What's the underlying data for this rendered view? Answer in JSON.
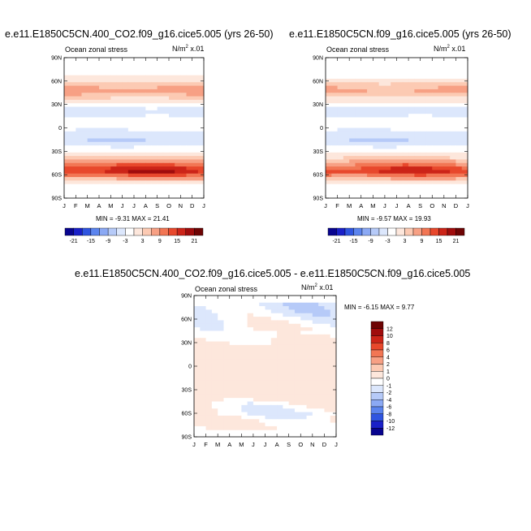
{
  "colors": {
    "scale": [
      "#08048f",
      "#1a20c8",
      "#2f55e0",
      "#5b84ee",
      "#8ba9f4",
      "#b6caf8",
      "#dce7fc",
      "#ffffff",
      "#fde7dc",
      "#fccab3",
      "#f7a084",
      "#f27654",
      "#e8482c",
      "#cc2418",
      "#a00c0c",
      "#6e0404"
    ]
  },
  "panels": [
    {
      "id": "top-left",
      "title": "e.e11.E1850C5CN.400_CO2.f09_g16.cice5.005 (yrs 26-50)",
      "subtitle": "Ocean zonal stress",
      "unit": "N/m",
      "unit_sup": "2",
      "unit_suffix": " x.01",
      "minmax": "MIN = -9.31 MAX = 21.41"
    },
    {
      "id": "top-right",
      "title": "e.e11.E1850C5CN.f09_g16.cice5.005 (yrs 26-50)",
      "subtitle": "Ocean zonal stress",
      "unit": "N/m",
      "unit_sup": "2",
      "unit_suffix": " x.01",
      "minmax": "MIN = -9.57 MAX = 19.93"
    },
    {
      "id": "bottom",
      "title": "e.e11.E1850C5CN.400_CO2.f09_g16.cice5.005 - e.e11.E1850C5CN.f09_g16.cice5.005",
      "subtitle": "Ocean zonal stress",
      "unit": "N/m",
      "unit_sup": "2",
      "unit_suffix": " x.01",
      "minmax": "MIN = -6.15 MAX =  9.77"
    }
  ],
  "chart_data": [
    {
      "type": "heatmap",
      "title": "e.e11.E1850C5CN.400_CO2.f09_g16.cice5.005 (yrs 26-50)",
      "subtitle": "Ocean zonal stress",
      "x_ticks": [
        "J",
        "F",
        "M",
        "A",
        "M",
        "J",
        "J",
        "A",
        "S",
        "O",
        "N",
        "D",
        "J"
      ],
      "y_ticks": [
        "90N",
        "60N",
        "30N",
        "0",
        "30S",
        "60S",
        "90S"
      ],
      "ylim": [
        -90,
        90
      ],
      "min": -9.31,
      "max": 21.41,
      "colorbar": {
        "orientation": "horizontal",
        "labels": [
          "-21",
          "-15",
          "-9",
          "-3",
          "3",
          "9",
          "15",
          "21"
        ]
      },
      "bands": [
        {
          "lat": 70,
          "value": -2
        },
        {
          "lat": 48,
          "value": 8
        },
        {
          "lat": 22,
          "value": -5
        },
        {
          "lat": 5,
          "value": -1
        },
        {
          "lat": -15,
          "value": -6
        },
        {
          "lat": -35,
          "value": 1
        },
        {
          "lat": -55,
          "value": 18
        },
        {
          "lat": -72,
          "value": -1
        }
      ]
    },
    {
      "type": "heatmap",
      "title": "e.e11.E1850C5CN.f09_g16.cice5.005 (yrs 26-50)",
      "subtitle": "Ocean zonal stress",
      "x_ticks": [
        "J",
        "F",
        "M",
        "A",
        "M",
        "J",
        "J",
        "A",
        "S",
        "O",
        "N",
        "D",
        "J"
      ],
      "y_ticks": [
        "90N",
        "60N",
        "30N",
        "0",
        "30S",
        "60S",
        "90S"
      ],
      "ylim": [
        -90,
        90
      ],
      "min": -9.57,
      "max": 19.93,
      "colorbar": {
        "orientation": "horizontal",
        "labels": [
          "-21",
          "-15",
          "-9",
          "-3",
          "3",
          "9",
          "15",
          "21"
        ]
      },
      "bands": [
        {
          "lat": 70,
          "value": -2
        },
        {
          "lat": 48,
          "value": 7
        },
        {
          "lat": 22,
          "value": -5
        },
        {
          "lat": 5,
          "value": -1
        },
        {
          "lat": -15,
          "value": -6
        },
        {
          "lat": -35,
          "value": 1
        },
        {
          "lat": -55,
          "value": 16
        },
        {
          "lat": -72,
          "value": -1
        }
      ]
    },
    {
      "type": "heatmap",
      "title": "e.e11.E1850C5CN.400_CO2.f09_g16.cice5.005 - e.e11.E1850C5CN.f09_g16.cice5.005",
      "subtitle": "Ocean zonal stress",
      "x_ticks": [
        "J",
        "F",
        "M",
        "A",
        "M",
        "J",
        "J",
        "A",
        "S",
        "O",
        "N",
        "D",
        "J"
      ],
      "y_ticks": [
        "90N",
        "60N",
        "30N",
        "0",
        "30S",
        "60S",
        "90S"
      ],
      "ylim": [
        -90,
        90
      ],
      "min": -6.15,
      "max": 9.77,
      "colorbar": {
        "orientation": "vertical",
        "labels": [
          "12",
          "10",
          "8",
          "6",
          "4",
          "2",
          "1",
          "0",
          "-1",
          "-2",
          "-4",
          "-6",
          "-8",
          "-10",
          "-12"
        ]
      },
      "bands": [
        {
          "lat": 70,
          "value": -2
        },
        {
          "lat": 50,
          "value": -0.5
        },
        {
          "lat": 20,
          "value": 0.5
        },
        {
          "lat": -10,
          "value": 0.5
        },
        {
          "lat": -40,
          "value": 0.5
        },
        {
          "lat": -60,
          "value": -1.5
        },
        {
          "lat": -70,
          "value": 0
        }
      ]
    }
  ]
}
